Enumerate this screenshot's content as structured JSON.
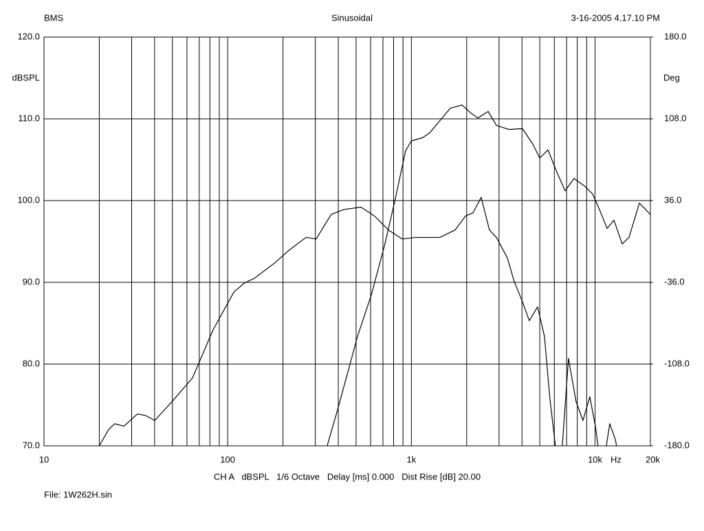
{
  "header": {
    "left": "BMS",
    "center": "Sinusoidal",
    "right": "3-16-2005 4.17.10 PM"
  },
  "chart_data": {
    "type": "line",
    "ylabel": "dBSPL",
    "y2label": "Deg",
    "xlabel": "Hz",
    "xscale": "log",
    "xlim": [
      10,
      20000
    ],
    "xticks": [
      10,
      100,
      {
        "value": 1000,
        "label": "1k"
      },
      {
        "value": 10000,
        "label": "10k"
      },
      {
        "value": 20000,
        "label": "20k"
      }
    ],
    "xminor": [
      20,
      30,
      40,
      50,
      60,
      70,
      80,
      90,
      200,
      300,
      400,
      500,
      600,
      700,
      800,
      900,
      2000,
      3000,
      4000,
      5000,
      6000,
      7000,
      8000,
      9000
    ],
    "ylim": [
      70,
      120
    ],
    "yticks": [
      {
        "value": 70,
        "label": "70.0"
      },
      {
        "value": 80,
        "label": "80.0"
      },
      {
        "value": 90,
        "label": "90.0"
      },
      {
        "value": 100,
        "label": "100.0"
      },
      {
        "value": 110,
        "label": "110.0"
      },
      {
        "value": 120,
        "label": "120.0"
      }
    ],
    "y2lim": [
      -180,
      180
    ],
    "y2ticks": [
      {
        "value": -180,
        "label": "-180.0"
      },
      {
        "value": -108,
        "label": "-108.0"
      },
      {
        "value": -36,
        "label": "-36.0"
      },
      {
        "value": 36,
        "label": "36.0"
      },
      {
        "value": 108,
        "label": "108.0"
      },
      {
        "value": 180,
        "label": "180.0"
      }
    ],
    "grid": true,
    "series": [
      {
        "color": "#000000",
        "x": [
          348,
          393,
          447,
          509,
          604,
          718,
          817,
          930,
          1000,
          1153,
          1259,
          1432,
          1630,
          1885,
          2110,
          2300,
          2620,
          2904,
          3390,
          4027,
          4585,
          4995,
          5540,
          6190,
          6866,
          7680,
          8740,
          9700,
          10570,
          11620,
          12670,
          14040,
          15300,
          17420,
          20000
        ],
        "values": [
          70,
          74.1,
          78.7,
          83.4,
          88.4,
          94.7,
          100.2,
          106.1,
          107.3,
          107.7,
          108.3,
          109.8,
          111.3,
          111.7,
          110.7,
          110.1,
          110.9,
          109.2,
          108.7,
          108.8,
          106.9,
          105.2,
          106.2,
          103.5,
          101.2,
          102.7,
          101.8,
          100.8,
          98.9,
          96.6,
          97.6,
          94.7,
          95.5,
          99.7,
          98.3
        ]
      },
      {
        "color": "#000000",
        "x": [
          20,
          22.5,
          24.3,
          27.2,
          32.3,
          35.8,
          40.1,
          49.7,
          64.3,
          83.3,
          108,
          123,
          140,
          181,
          215,
          267,
          303,
          366,
          428,
          531,
          631,
          750,
          891,
          1059,
          1432,
          1730,
          1968,
          2163,
          2399,
          2660,
          2904,
          3327,
          3630,
          4027,
          4385,
          4864,
          5300,
          5675,
          6080,
          null,
          6630,
          7165,
          7880,
          8590,
          9360,
          10040,
          10380,
          null,
          11510,
          12020,
          12880,
          13100
        ],
        "values": [
          70,
          72,
          72.7,
          72.4,
          73.9,
          73.7,
          73.1,
          75.4,
          78.3,
          84.2,
          88.8,
          89.9,
          90.5,
          92.4,
          93.9,
          95.5,
          95.3,
          98.3,
          98.9,
          99.2,
          98.1,
          96.4,
          95.3,
          95.5,
          95.5,
          96.4,
          98.1,
          98.5,
          100.4,
          96.4,
          95.5,
          93,
          90.1,
          87.6,
          85.3,
          87,
          83.4,
          75.8,
          70,
          null,
          70,
          80.7,
          75.4,
          73.1,
          76,
          72.4,
          70,
          null,
          70,
          72.7,
          70.8,
          70
        ]
      }
    ]
  },
  "footer": {
    "settings": "CH A   dBSPL   1/6 Octave   Delay [ms] 0.000   Dist Rise [dB] 20.00",
    "file": "File: 1W262H.sin"
  }
}
